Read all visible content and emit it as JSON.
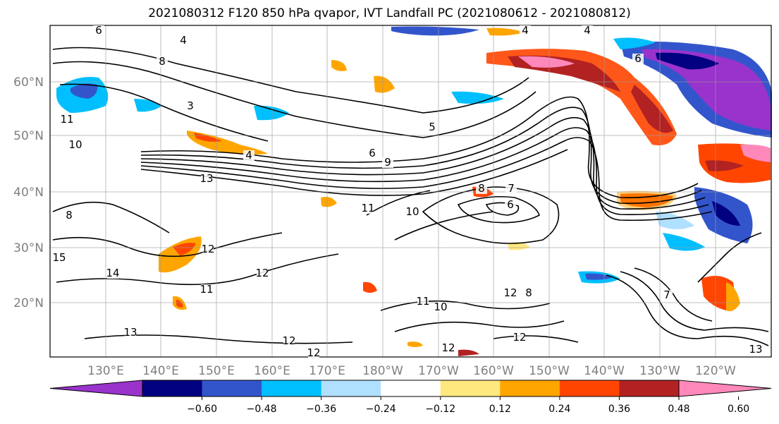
{
  "title": "2021080312 F120 850 hPa qvapor, IVT Landfall PC (2021080612 - 2021080812)",
  "map": {
    "lat_labels": [
      "60°N",
      "50°N",
      "40°N",
      "30°N",
      "20°N"
    ],
    "lon_labels": [
      "130°E",
      "140°E",
      "150°E",
      "160°E",
      "170°E",
      "180°W",
      "170°W",
      "160°W",
      "150°W",
      "140°W",
      "130°W",
      "120°W"
    ],
    "contour_labels": [
      "6",
      "4",
      "4",
      "4",
      "8",
      "6",
      "3",
      "11",
      "10",
      "4",
      "5",
      "6",
      "9",
      "13",
      "8",
      "8",
      "11",
      "10",
      "7",
      "6",
      "12",
      "14",
      "12",
      "11",
      "12",
      "13",
      "11",
      "10",
      "8",
      "12",
      "12",
      "12",
      "12",
      "7",
      "13",
      "15"
    ],
    "gridlines": true,
    "coastlines": true
  },
  "colorbar": {
    "ticks": [
      "−0.60",
      "−0.48",
      "−0.36",
      "−0.24",
      "−0.12",
      "0.12",
      "0.24",
      "0.36",
      "0.48",
      "0.60"
    ],
    "colors": [
      "#9933cc",
      "#000080",
      "#3355cc",
      "#00bfff",
      "#b0e0ff",
      "#ffffff",
      "#ffe97f",
      "#ffa500",
      "#ff4500",
      "#b22222",
      "#ff88bb"
    ],
    "extend": "both"
  },
  "legend_colors": {
    "contour": "#000000",
    "grid": "#999999"
  }
}
